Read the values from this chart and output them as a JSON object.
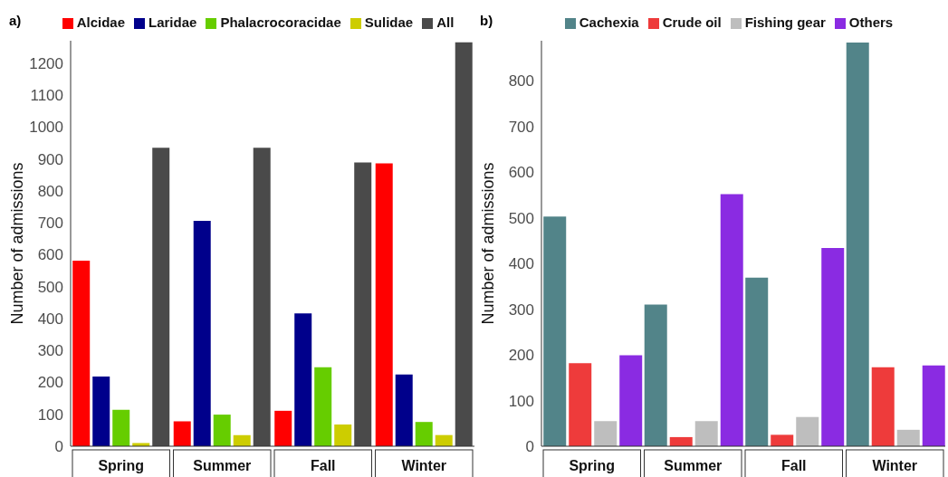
{
  "chart_data": [
    {
      "type": "bar",
      "title": "a)",
      "ylabel": "Number of admissions",
      "categories": [
        "Spring",
        "Summer",
        "Fall",
        "Winter"
      ],
      "series": [
        {
          "name": "Alcidae",
          "color": "#ff0000",
          "values": [
            581,
            78,
            111,
            886
          ]
        },
        {
          "name": "Laridae",
          "color": "#00008b",
          "values": [
            218,
            706,
            416,
            225
          ]
        },
        {
          "name": "Phalacrocoracidae",
          "color": "#66cd00",
          "values": [
            114,
            99,
            247,
            76
          ]
        },
        {
          "name": "Sulidae",
          "color": "#cdcd00",
          "values": [
            10,
            35,
            68,
            35
          ]
        },
        {
          "name": "All",
          "color": "#4a4a4a",
          "values": [
            935,
            935,
            889,
            1265
          ]
        }
      ],
      "ylim": [
        0,
        1270
      ],
      "yticks": [
        0,
        100,
        200,
        300,
        400,
        500,
        600,
        700,
        800,
        900,
        1000,
        1100,
        1200
      ],
      "grid": false,
      "legend": "top"
    },
    {
      "type": "bar",
      "title": "b)",
      "ylabel": "Number of admissions",
      "categories": [
        "Spring",
        "Summer",
        "Fall",
        "Winter"
      ],
      "series": [
        {
          "name": "Cachexia",
          "color": "#528489",
          "values": [
            503,
            310,
            369,
            884
          ]
        },
        {
          "name": "Crude oil",
          "color": "#ee3b3b",
          "values": [
            182,
            20,
            25,
            173
          ]
        },
        {
          "name": "Fishing gear",
          "color": "#bebebe",
          "values": [
            55,
            55,
            64,
            36
          ]
        },
        {
          "name": "Others",
          "color": "#8a2be2",
          "values": [
            199,
            552,
            434,
            177
          ]
        }
      ],
      "ylim": [
        0,
        888
      ],
      "yticks": [
        0,
        100,
        200,
        300,
        400,
        500,
        600,
        700,
        800
      ],
      "grid": false,
      "legend": "top"
    }
  ]
}
